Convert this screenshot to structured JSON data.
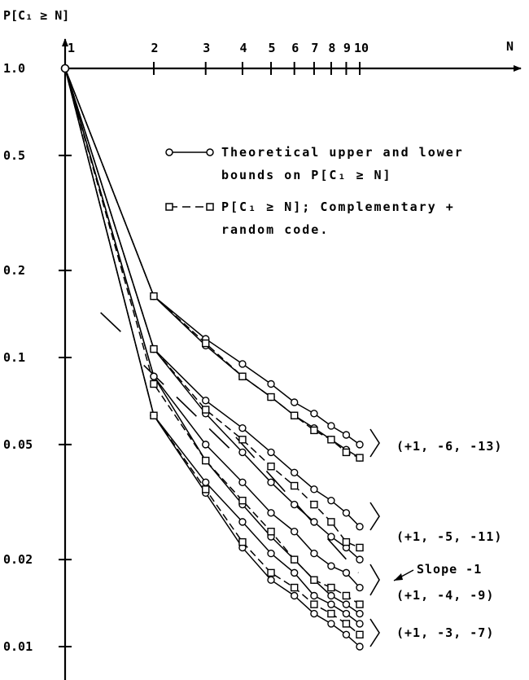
{
  "chart_data": {
    "type": "line",
    "scale": "log-log",
    "y_axis_title": "P[C₁ ≥ N]",
    "x_axis_title": "N",
    "x_ticks": [
      1,
      2,
      3,
      4,
      5,
      6,
      7,
      8,
      9,
      10
    ],
    "x_tick_labels": [
      "1",
      "2",
      "3",
      "4",
      "5",
      "6",
      "7",
      "8",
      "9",
      "10"
    ],
    "y_ticks": [
      1.0,
      0.5,
      0.2,
      0.1,
      0.05,
      0.02,
      0.01
    ],
    "y_tick_labels": [
      "1.0",
      "0.5",
      "0.2",
      "0.1",
      "0.05",
      "0.02",
      "0.01"
    ],
    "xlim": [
      1,
      10
    ],
    "ylim": [
      0.01,
      1.0
    ],
    "legend": [
      {
        "marker": "circle",
        "style": "solid",
        "lines": [
          "Theoretical upper and lower",
          "bounds on P[C₁ ≥ N]"
        ]
      },
      {
        "marker": "square",
        "style": "dashed",
        "lines": [
          "P[C₁ ≥ N]; Complementary +",
          "random code."
        ]
      }
    ],
    "groups": [
      {
        "label": "(+1, -6, -13)",
        "upper_bound": {
          "x": [
            1,
            2,
            3,
            4,
            5,
            6,
            7,
            8,
            9,
            10
          ],
          "y": [
            1.0,
            0.163,
            0.116,
            0.095,
            0.081,
            0.07,
            0.064,
            0.058,
            0.054,
            0.05
          ]
        },
        "lower_bound": {
          "x": [
            1,
            2,
            3,
            4,
            5,
            6,
            7,
            8,
            9,
            10
          ],
          "y": [
            1.0,
            0.163,
            0.11,
            0.086,
            0.073,
            0.063,
            0.057,
            0.052,
            0.048,
            0.045
          ]
        },
        "simulation": {
          "x": [
            1,
            2,
            3,
            4,
            5,
            6,
            7,
            8,
            9,
            10
          ],
          "y": [
            1.0,
            0.163,
            0.112,
            0.086,
            0.073,
            0.063,
            0.056,
            0.052,
            0.047,
            0.045
          ]
        }
      },
      {
        "label": "(+1, -5, -11)",
        "upper_bound": {
          "x": [
            1,
            2,
            3,
            4,
            5,
            6,
            7,
            8,
            9,
            10
          ],
          "y": [
            1.0,
            0.107,
            0.071,
            0.057,
            0.047,
            0.04,
            0.035,
            0.032,
            0.029,
            0.026
          ]
        },
        "lower_bound": {
          "x": [
            1,
            2,
            3,
            4,
            5,
            6,
            7,
            8,
            9,
            10
          ],
          "y": [
            1.0,
            0.107,
            0.064,
            0.047,
            0.037,
            0.031,
            0.027,
            0.024,
            0.022,
            0.02
          ]
        },
        "simulation": {
          "x": [
            1,
            2,
            3,
            4,
            5,
            6,
            7,
            8,
            9,
            10
          ],
          "y": [
            1.0,
            0.107,
            0.066,
            0.052,
            0.042,
            0.036,
            0.031,
            0.027,
            0.023,
            0.022
          ]
        }
      },
      {
        "label": "(+1, -4, -9)",
        "upper_bound": {
          "x": [
            1,
            2,
            3,
            4,
            5,
            6,
            7,
            8,
            9,
            10
          ],
          "y": [
            1.0,
            0.086,
            0.05,
            0.037,
            0.029,
            0.025,
            0.021,
            0.019,
            0.018,
            0.016
          ]
        },
        "lower_bound": {
          "x": [
            1,
            2,
            3,
            4,
            5,
            6,
            7,
            8,
            9,
            10
          ],
          "y": [
            1.0,
            0.086,
            0.044,
            0.031,
            0.024,
            0.02,
            0.017,
            0.015,
            0.014,
            0.013
          ]
        },
        "simulation": {
          "x": [
            1,
            2,
            3,
            4,
            5,
            6,
            7,
            8,
            9,
            10
          ],
          "y": [
            1.0,
            0.081,
            0.044,
            0.032,
            0.025,
            0.02,
            0.017,
            0.016,
            0.015,
            0.014
          ]
        }
      },
      {
        "label": "(+1, -3, -7)",
        "upper_bound": {
          "x": [
            1,
            2,
            3,
            4,
            5,
            6,
            7,
            8,
            9,
            10
          ],
          "y": [
            1.0,
            0.063,
            0.037,
            0.027,
            0.021,
            0.018,
            0.015,
            0.014,
            0.013,
            0.012
          ]
        },
        "lower_bound": {
          "x": [
            1,
            2,
            3,
            4,
            5,
            6,
            7,
            8,
            9,
            10
          ],
          "y": [
            1.0,
            0.063,
            0.034,
            0.022,
            0.017,
            0.015,
            0.013,
            0.012,
            0.011,
            0.01
          ]
        },
        "simulation": {
          "x": [
            1,
            2,
            3,
            4,
            5,
            6,
            7,
            8,
            9,
            10
          ],
          "y": [
            1.0,
            0.063,
            0.035,
            0.023,
            0.018,
            0.016,
            0.014,
            0.013,
            0.012,
            0.011
          ]
        }
      }
    ],
    "annotations": [
      {
        "text": "Slope -1",
        "note": "dashed reference lines of slope -1 drawn across the curves"
      }
    ],
    "slope_reference": {
      "slope": -1,
      "lines": [
        {
          "x": [
            1.32,
            1.7
          ],
          "y": [
            0.143,
            0.112
          ]
        },
        {
          "x": [
            1.85,
            3.9
          ],
          "y": [
            0.094,
            0.045
          ]
        },
        {
          "x": [
            3.8,
            9.9
          ],
          "y": [
            0.053,
            0.018
          ]
        }
      ]
    }
  }
}
